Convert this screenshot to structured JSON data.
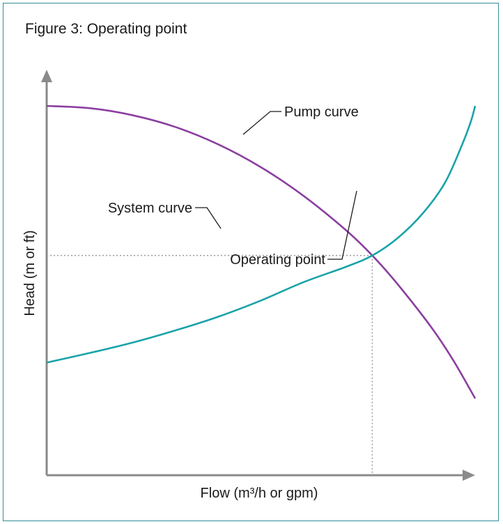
{
  "figure_title": "Figure 3: Operating point",
  "colors": {
    "pump_curve": "#8b3fa0",
    "system_curve": "#1aa3a8",
    "axis": "#8a8a8a",
    "guide": "#9a9a9a",
    "border": "#2f8f9a"
  },
  "chart_data": {
    "type": "line",
    "title": "Figure 3: Operating point",
    "xlabel": "Flow (m³/h or gpm)",
    "ylabel": "Head (m or ft)",
    "xlim": [
      0,
      100
    ],
    "ylim": [
      0,
      100
    ],
    "ticks_shown": false,
    "grid": false,
    "series": [
      {
        "name": "Pump curve",
        "x": [
          0,
          10,
          20,
          30,
          40,
          50,
          60,
          70,
          76,
          82,
          90,
          95,
          100
        ],
        "y": [
          100,
          99.4,
          97.5,
          94.3,
          89.6,
          83.4,
          75.6,
          66.2,
          59.5,
          51.6,
          39.7,
          30.9,
          20.8
        ]
      },
      {
        "name": "System curve",
        "x": [
          0,
          10,
          20,
          30,
          40,
          50,
          60,
          70,
          76,
          82,
          88,
          93,
          97,
          99,
          100
        ],
        "y": [
          30.5,
          33.1,
          35.9,
          39.2,
          42.9,
          47.3,
          52.3,
          56.5,
          59.5,
          64.3,
          71.2,
          79.3,
          89.6,
          95.8,
          100
        ]
      }
    ],
    "annotations": [
      {
        "label": "Pump curve",
        "target": "pump-curve"
      },
      {
        "label": "System curve",
        "target": "system-curve"
      },
      {
        "label": "Operating point",
        "x": 76,
        "y": 59.5
      }
    ],
    "operating_point": {
      "x": 76,
      "y": 59.5
    }
  }
}
